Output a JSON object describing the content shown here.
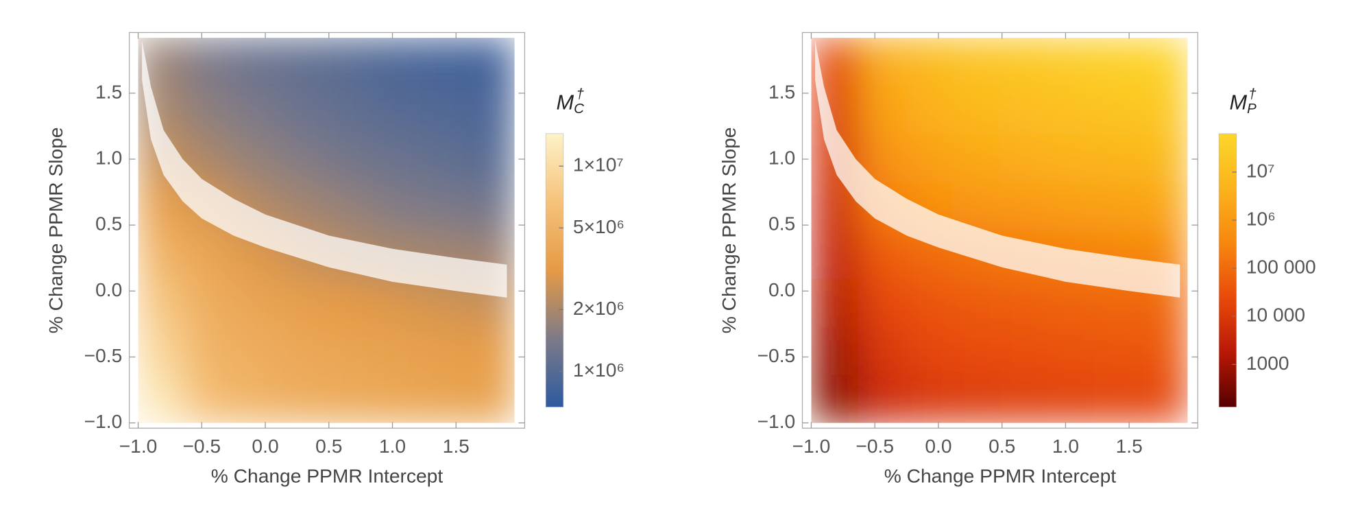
{
  "chart_data": [
    {
      "type": "heatmap",
      "xlabel": "% Change PPMR Intercept",
      "ylabel": "% Change PPMR Slope",
      "xlim": [
        -1.07,
        2.04
      ],
      "ylim": [
        -1.04,
        1.96
      ],
      "xticks": [
        {
          "value": -1,
          "label": "−1.0"
        },
        {
          "value": -0.5,
          "label": "−0.5"
        },
        {
          "value": 0,
          "label": "0.0"
        },
        {
          "value": 0.5,
          "label": "0.5"
        },
        {
          "value": 1,
          "label": "1.0"
        },
        {
          "value": 1.5,
          "label": "1.5"
        }
      ],
      "yticks": [
        {
          "value": -1,
          "label": "−1.0"
        },
        {
          "value": -0.5,
          "label": "−0.5"
        },
        {
          "value": 0,
          "label": "0.0"
        },
        {
          "value": 0.5,
          "label": "0.5"
        },
        {
          "value": 1,
          "label": "1.0"
        },
        {
          "value": 1.5,
          "label": "1.5"
        }
      ],
      "xbins": [
        -1,
        -0.63,
        -0.26,
        0.11,
        0.48,
        0.85,
        1.22,
        1.59,
        1.96
      ],
      "ybins": [
        -1,
        -0.635,
        -0.27,
        0.095,
        0.46,
        0.825,
        1.19,
        1.555,
        1.92
      ],
      "values": [
        [
          12000000,
          6000000,
          5000000,
          4500000,
          4200000,
          4000000,
          3800000,
          3600000
        ],
        [
          9000000,
          5000000,
          4500000,
          4000000,
          3800000,
          3600000,
          3400000,
          3200000
        ],
        [
          7000000,
          4500000,
          3800000,
          3400000,
          3100000,
          2900000,
          2700000,
          2500000
        ],
        [
          5000000,
          3800000,
          3000000,
          2500000,
          2200000,
          2000000,
          1900000,
          1800000
        ],
        [
          3500000,
          2800000,
          2200000,
          1900000,
          1700000,
          1500000,
          1400000,
          1300000
        ],
        [
          2500000,
          2000000,
          1700000,
          1500000,
          1300000,
          1200000,
          1100000,
          1000000
        ],
        [
          2000000,
          1600000,
          1400000,
          1200000,
          1100000,
          1000000,
          950000,
          900000
        ],
        [
          1800000,
          1400000,
          1200000,
          1100000,
          1000000,
          900000,
          850000,
          800000
        ]
      ],
      "band": {
        "x": [
          -0.97,
          -0.9,
          -0.8,
          -0.65,
          -0.5,
          -0.25,
          0,
          0.5,
          1,
          1.5,
          1.9
        ],
        "y_low": [
          1.6,
          1.15,
          0.88,
          0.68,
          0.55,
          0.42,
          0.33,
          0.18,
          0.07,
          0,
          -0.05
        ],
        "y_high": [
          1.9,
          1.55,
          1.22,
          1,
          0.85,
          0.7,
          0.58,
          0.42,
          0.32,
          0.25,
          0.2
        ]
      },
      "colorbar": {
        "title": {
          "base": "M",
          "sub": "C",
          "sup": "†"
        },
        "log": true,
        "zlim": [
          670000,
          14400000
        ],
        "colors": [
          "#2c5aa0",
          "#7d7a88",
          "#e59a45",
          "#f6c27a",
          "#fdf3c8"
        ],
        "ticks": [
          {
            "value": 1000000,
            "label": "1×10⁶"
          },
          {
            "value": 2000000,
            "label": "2×10⁶"
          },
          {
            "value": 5000000,
            "label": "5×10⁶"
          },
          {
            "value": 10000000,
            "label": "1×10⁷"
          }
        ]
      }
    },
    {
      "type": "heatmap",
      "xlabel": "% Change PPMR Intercept",
      "ylabel": "% Change PPMR Slope",
      "xlim": [
        -1.07,
        2.04
      ],
      "ylim": [
        -1.04,
        1.96
      ],
      "xticks": [
        {
          "value": -1,
          "label": "−1.0"
        },
        {
          "value": -0.5,
          "label": "−0.5"
        },
        {
          "value": 0,
          "label": "0.0"
        },
        {
          "value": 0.5,
          "label": "0.5"
        },
        {
          "value": 1,
          "label": "1.0"
        },
        {
          "value": 1.5,
          "label": "1.5"
        }
      ],
      "yticks": [
        {
          "value": -1,
          "label": "−1.0"
        },
        {
          "value": -0.5,
          "label": "−0.5"
        },
        {
          "value": 0,
          "label": "0.0"
        },
        {
          "value": 0.5,
          "label": "0.5"
        },
        {
          "value": 1,
          "label": "1.0"
        },
        {
          "value": 1.5,
          "label": "1.5"
        }
      ],
      "xbins": [
        -1,
        -0.63,
        -0.26,
        0.11,
        0.48,
        0.85,
        1.22,
        1.59,
        1.96
      ],
      "ybins": [
        -1,
        -0.635,
        -0.27,
        0.095,
        0.46,
        0.825,
        1.19,
        1.555,
        1.92
      ],
      "values": [
        [
          500,
          5000,
          10000,
          12000,
          14000,
          16000,
          18000,
          20000
        ],
        [
          800,
          10000,
          20000,
          25000,
          30000,
          35000,
          40000,
          45000
        ],
        [
          1500,
          20000,
          40000,
          50000,
          60000,
          70000,
          80000,
          90000
        ],
        [
          3000,
          50000,
          100000,
          150000,
          200000,
          250000,
          300000,
          350000
        ],
        [
          5000,
          200000,
          500000,
          800000,
          1000000,
          1300000,
          1600000,
          2000000
        ],
        [
          8000,
          600000,
          1500000,
          2500000,
          3500000,
          4500000,
          5500000,
          7000000
        ],
        [
          12000,
          1500000,
          4000000,
          7000000,
          10000000,
          13000000,
          17000000,
          22000000
        ],
        [
          20000,
          3000000,
          8000000,
          15000000,
          20000000,
          30000000,
          40000000,
          50000000
        ]
      ],
      "band": {
        "x": [
          -0.97,
          -0.9,
          -0.8,
          -0.65,
          -0.5,
          -0.25,
          0,
          0.5,
          1,
          1.5,
          1.9
        ],
        "y_low": [
          1.6,
          1.15,
          0.88,
          0.68,
          0.55,
          0.42,
          0.33,
          0.18,
          0.07,
          0,
          -0.05
        ],
        "y_high": [
          1.9,
          1.55,
          1.22,
          1,
          0.85,
          0.7,
          0.58,
          0.42,
          0.32,
          0.25,
          0.2
        ]
      },
      "colorbar": {
        "title": {
          "base": "M",
          "sub": "P",
          "sup": "†"
        },
        "log": true,
        "zlim": [
          130,
          63000000
        ],
        "colors": [
          "#560000",
          "#b81806",
          "#e84a0a",
          "#f7870f",
          "#fbb31c",
          "#fdd62a"
        ],
        "ticks": [
          1000,
          {
            "value": 10000,
            "label": "10 000"
          },
          {
            "value": 100000,
            "label": "100 000"
          },
          {
            "value": 1000000,
            "label": "10⁶"
          },
          {
            "value": 10000000,
            "label": "10⁷"
          }
        ]
      }
    }
  ]
}
